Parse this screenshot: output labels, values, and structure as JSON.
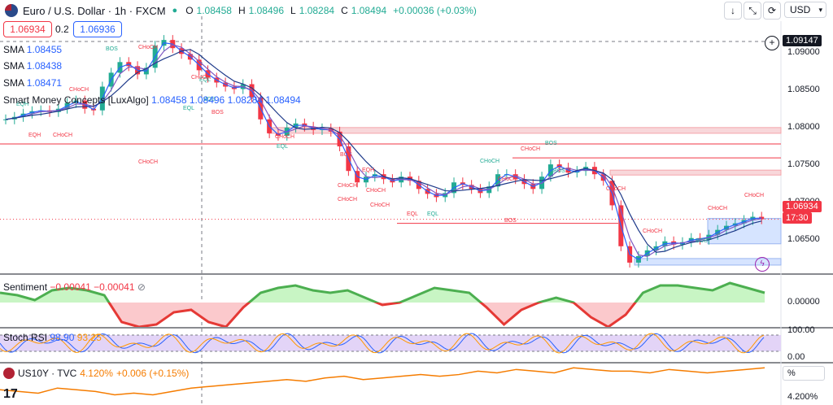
{
  "header": {
    "symbol": "Euro / U.S. Dollar · 1h · FXCM",
    "ohlc": [
      {
        "k": "O",
        "v": "1.08458"
      },
      {
        "k": "H",
        "v": "1.08496"
      },
      {
        "k": "L",
        "v": "1.08284"
      },
      {
        "k": "C",
        "v": "1.08494"
      }
    ],
    "change": "+0.00036 (+0.03%)",
    "currency": "USD",
    "sell_price": "1.06934",
    "spread": "0.2",
    "buy_price": "1.06936"
  },
  "indicators": [
    {
      "name": "SMA",
      "value": "1.08455"
    },
    {
      "name": "SMA",
      "value": "1.08438"
    },
    {
      "name": "SMA",
      "value": "1.08471"
    }
  ],
  "smc": {
    "name": "Smart Money Concepts [LuxAlgo]",
    "values": [
      "1.08458",
      "1.08496",
      "1.08284",
      "1.08494"
    ]
  },
  "sentiment": {
    "name": "Sentiment",
    "v1": "−0.00041",
    "v2": "−0.00041",
    "axis": "0.00000"
  },
  "stoch": {
    "name": "Stoch RSI",
    "v1": "98.90",
    "v2": "93.25",
    "axis_top": "100.00",
    "axis_bottom": "0.00"
  },
  "bond": {
    "name": "US10Y · TVC",
    "value": "4.120%",
    "change": "+0.006 (+0.15%)",
    "axis_unit": "%",
    "axis_val": "4.200%"
  },
  "price_axis": {
    "labels": [
      "1.09000",
      "1.08500",
      "1.08000",
      "1.07500",
      "1.07000",
      "1.06500"
    ],
    "crosshair": "1.09147",
    "last": "1.06934",
    "countdown": "17:30"
  },
  "colors": {
    "up": "#22ab94",
    "down": "#f23645",
    "bos": "#f23645",
    "sma1": "#2962ff",
    "sma2": "#7e57c2",
    "sma3": "#1e3a8a"
  },
  "annotations": [
    "BOS",
    "CHoCH",
    "EQL",
    "EQH",
    "CHoCH",
    "BOS",
    "EQL",
    "CHoCH",
    "BOS",
    "EQH",
    "CHoCH",
    "EQL",
    "EQL",
    "BOS",
    "CHoCH",
    "CHoCH",
    "CHoCH",
    "CHoCH",
    "BOS",
    "CHoCH",
    "CHoCH",
    "BOS",
    "CHoCH",
    "CHoCH",
    "EQL",
    "CHoCH",
    "EQH",
    "BOS",
    "CHoCH",
    "CHoCH",
    "BOS",
    "CHoCH",
    "CHoCH"
  ],
  "chart_data": {
    "type": "line",
    "title": "Euro / U.S. Dollar · 1h · FXCM",
    "ylim": [
      1.0628,
      1.0935
    ],
    "y_ticks": [
      1.09,
      1.085,
      1.08,
      1.075,
      1.07,
      1.065
    ],
    "series": [
      {
        "name": "",
        "values": [
          1.0815,
          1.0818,
          1.0822,
          1.0825,
          1.0826,
          1.0824,
          1.0828,
          1.0835,
          1.0838,
          1.0828,
          1.0826,
          1.0855,
          1.0872,
          1.0885,
          1.088,
          1.087,
          1.0878,
          1.0905,
          1.0912,
          1.0902,
          1.0895,
          1.0888,
          1.0875,
          1.0866,
          1.086,
          1.0855,
          1.0852,
          1.0858,
          1.0842,
          1.0815,
          1.0798,
          1.0795,
          1.0805,
          1.081,
          1.0806,
          1.0802,
          1.0804,
          1.08,
          1.0782,
          1.0752,
          1.0738,
          1.0745,
          1.0748,
          1.0742,
          1.0738,
          1.0745,
          1.074,
          1.073,
          1.0724,
          1.072,
          1.0725,
          1.0738,
          1.0735,
          1.073,
          1.0725,
          1.0733,
          1.0748,
          1.0748,
          1.0742,
          1.0736,
          1.073,
          1.0745,
          1.076,
          1.0756,
          1.075,
          1.0752,
          1.0757,
          1.0748,
          1.074,
          1.071,
          1.066,
          1.064,
          1.0648,
          1.0655,
          1.066,
          1.0666,
          1.0662,
          1.0665,
          1.067,
          1.0668,
          1.0674,
          1.068,
          1.0685,
          1.0688,
          1.0692,
          1.0696,
          1.0693
        ]
      }
    ],
    "sentiment_values": [
      0.4,
      0.3,
      0.1,
      0.5,
      0.6,
      0.5,
      0.3,
      -0.8,
      -1.0,
      -0.9,
      -0.4,
      -0.3,
      -0.8,
      -1.0,
      -0.2,
      0.4,
      0.6,
      0.7,
      0.5,
      0.4,
      0.5,
      0.2,
      -0.1,
      0.0,
      0.3,
      0.6,
      0.5,
      0.4,
      -0.2,
      -0.9,
      -0.3,
      0.0,
      0.2,
      0.0,
      -0.6,
      -1.0,
      -0.5,
      0.4,
      0.7,
      0.7,
      0.6,
      0.5,
      0.8,
      0.6,
      0.4
    ],
    "bond_values": [
      4.19,
      4.18,
      4.17,
      4.2,
      4.19,
      4.18,
      4.16,
      4.17,
      4.16,
      4.18,
      4.2,
      4.21,
      4.22,
      4.23,
      4.24,
      4.25,
      4.24,
      4.26,
      4.27,
      4.25,
      4.26,
      4.27,
      4.28,
      4.27,
      4.28,
      4.3,
      4.29,
      4.31,
      4.3,
      4.29,
      4.32,
      4.31,
      4.3,
      4.3,
      4.29,
      4.31,
      4.3,
      4.29,
      4.3,
      4.31,
      4.32
    ]
  }
}
